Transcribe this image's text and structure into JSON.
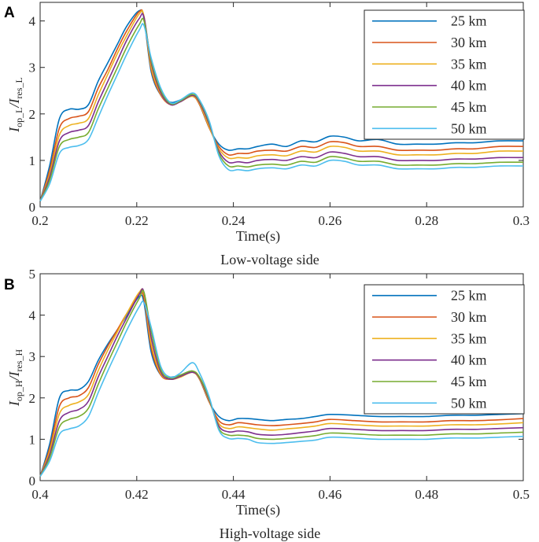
{
  "chart_data": [
    {
      "panel": "A",
      "type": "line",
      "caption": "Low-voltage side",
      "xlabel": "Time(s)",
      "ylabel_main": "I",
      "ylabel_sub1": "op_L",
      "ylabel_mid": "/I",
      "ylabel_sub2": "res_L",
      "xlim": [
        0.2,
        0.3
      ],
      "ylim": [
        0,
        4.4
      ],
      "xticks": [
        "0.2",
        "0.22",
        "0.24",
        "0.26",
        "0.28",
        "0.3"
      ],
      "xtick_values": [
        0.2,
        0.22,
        0.24,
        0.26,
        0.28,
        0.3
      ],
      "yticks": [
        "0",
        "1",
        "2",
        "3",
        "4"
      ],
      "ytick_values": [
        0,
        1,
        2,
        3,
        4
      ],
      "legend_position": "top-right",
      "x": [
        0.2,
        0.202,
        0.204,
        0.206,
        0.208,
        0.21,
        0.212,
        0.214,
        0.216,
        0.218,
        0.2205,
        0.2215,
        0.223,
        0.225,
        0.227,
        0.229,
        0.2315,
        0.233,
        0.235,
        0.237,
        0.239,
        0.241,
        0.243,
        0.245,
        0.248,
        0.251,
        0.254,
        0.257,
        0.26,
        0.263,
        0.266,
        0.27,
        0.274,
        0.278,
        0.282,
        0.286,
        0.29,
        0.295,
        0.3
      ],
      "series": [
        {
          "name": "25 km",
          "color": "#0072bd",
          "values": [
            0.12,
            0.9,
            1.9,
            2.1,
            2.1,
            2.2,
            2.7,
            3.1,
            3.5,
            3.9,
            4.22,
            4.05,
            2.9,
            2.4,
            2.25,
            2.3,
            2.42,
            2.2,
            1.7,
            1.35,
            1.22,
            1.25,
            1.25,
            1.3,
            1.35,
            1.3,
            1.42,
            1.4,
            1.52,
            1.5,
            1.42,
            1.45,
            1.35,
            1.35,
            1.35,
            1.38,
            1.38,
            1.42,
            1.42
          ]
        },
        {
          "name": "30 km",
          "color": "#d95319",
          "values": [
            0.12,
            0.8,
            1.7,
            1.9,
            1.95,
            2.05,
            2.55,
            2.95,
            3.4,
            3.8,
            4.2,
            4.08,
            2.95,
            2.4,
            2.2,
            2.28,
            2.38,
            2.2,
            1.7,
            1.3,
            1.12,
            1.15,
            1.15,
            1.2,
            1.22,
            1.2,
            1.3,
            1.28,
            1.4,
            1.38,
            1.3,
            1.3,
            1.22,
            1.22,
            1.22,
            1.25,
            1.25,
            1.3,
            1.3
          ]
        },
        {
          "name": "35 km",
          "color": "#edb120",
          "values": [
            0.12,
            0.72,
            1.55,
            1.75,
            1.8,
            1.9,
            2.4,
            2.85,
            3.3,
            3.7,
            4.15,
            4.1,
            3.0,
            2.42,
            2.2,
            2.26,
            2.38,
            2.22,
            1.72,
            1.25,
            1.05,
            1.06,
            1.05,
            1.1,
            1.12,
            1.1,
            1.2,
            1.18,
            1.3,
            1.28,
            1.2,
            1.2,
            1.12,
            1.12,
            1.12,
            1.15,
            1.15,
            1.2,
            1.2
          ]
        },
        {
          "name": "40 km",
          "color": "#7e2f8e",
          "values": [
            0.12,
            0.65,
            1.42,
            1.6,
            1.65,
            1.75,
            2.25,
            2.7,
            3.15,
            3.6,
            4.05,
            4.08,
            3.1,
            2.45,
            2.2,
            2.26,
            2.4,
            2.25,
            1.78,
            1.2,
            0.96,
            0.97,
            0.95,
            1.0,
            1.02,
            1.0,
            1.08,
            1.06,
            1.18,
            1.15,
            1.08,
            1.08,
            1.0,
            1.0,
            1.0,
            1.03,
            1.03,
            1.06,
            1.06
          ]
        },
        {
          "name": "45 km",
          "color": "#77ac30",
          "values": [
            0.12,
            0.58,
            1.3,
            1.45,
            1.5,
            1.6,
            2.1,
            2.55,
            3.0,
            3.45,
            3.92,
            4.0,
            3.15,
            2.5,
            2.22,
            2.28,
            2.42,
            2.28,
            1.82,
            1.15,
            0.88,
            0.88,
            0.86,
            0.9,
            0.92,
            0.9,
            0.98,
            0.96,
            1.08,
            1.05,
            0.98,
            0.98,
            0.9,
            0.9,
            0.9,
            0.93,
            0.93,
            0.96,
            0.96
          ]
        },
        {
          "name": "50 km",
          "color": "#4dbeee",
          "values": [
            0.12,
            0.5,
            1.15,
            1.28,
            1.32,
            1.45,
            1.92,
            2.4,
            2.85,
            3.3,
            3.8,
            3.9,
            3.2,
            2.55,
            2.24,
            2.3,
            2.45,
            2.3,
            1.85,
            1.1,
            0.8,
            0.8,
            0.78,
            0.82,
            0.84,
            0.82,
            0.9,
            0.88,
            1.0,
            0.98,
            0.9,
            0.9,
            0.82,
            0.82,
            0.82,
            0.85,
            0.85,
            0.88,
            0.88
          ]
        }
      ]
    },
    {
      "panel": "B",
      "type": "line",
      "caption": "High-voltage side",
      "xlabel": "Time(s)",
      "ylabel_main": "I",
      "ylabel_sub1": "op_H",
      "ylabel_mid": "/I",
      "ylabel_sub2": "res_H",
      "xlim": [
        0.4,
        0.5
      ],
      "ylim": [
        0,
        5
      ],
      "xticks": [
        "0.4",
        "0.42",
        "0.44",
        "0.46",
        "0.48",
        "0.5"
      ],
      "xtick_values": [
        0.4,
        0.42,
        0.44,
        0.46,
        0.48,
        0.5
      ],
      "yticks": [
        "0",
        "1",
        "2",
        "3",
        "4",
        "5"
      ],
      "ytick_values": [
        0,
        1,
        2,
        3,
        4,
        5
      ],
      "legend_position": "top-right",
      "x": [
        0.4,
        0.402,
        0.404,
        0.406,
        0.408,
        0.41,
        0.412,
        0.414,
        0.416,
        0.418,
        0.4205,
        0.4215,
        0.423,
        0.425,
        0.427,
        0.429,
        0.4315,
        0.433,
        0.435,
        0.437,
        0.439,
        0.441,
        0.443,
        0.445,
        0.448,
        0.451,
        0.454,
        0.457,
        0.46,
        0.465,
        0.47,
        0.475,
        0.48,
        0.485,
        0.49,
        0.495,
        0.5
      ],
      "series": [
        {
          "name": "25 km",
          "color": "#0072bd",
          "values": [
            0.1,
            0.9,
            2.0,
            2.18,
            2.2,
            2.4,
            2.9,
            3.3,
            3.65,
            4.0,
            4.45,
            4.3,
            3.1,
            2.55,
            2.5,
            2.55,
            2.65,
            2.45,
            1.9,
            1.55,
            1.45,
            1.5,
            1.5,
            1.48,
            1.45,
            1.48,
            1.5,
            1.55,
            1.6,
            1.58,
            1.55,
            1.55,
            1.55,
            1.58,
            1.58,
            1.6,
            1.62
          ]
        },
        {
          "name": "30 km",
          "color": "#d95319",
          "values": [
            0.1,
            0.8,
            1.8,
            2.0,
            2.05,
            2.25,
            2.8,
            3.25,
            3.65,
            4.05,
            4.5,
            4.4,
            3.2,
            2.55,
            2.45,
            2.52,
            2.62,
            2.45,
            1.9,
            1.45,
            1.35,
            1.4,
            1.38,
            1.35,
            1.33,
            1.35,
            1.38,
            1.42,
            1.48,
            1.45,
            1.42,
            1.42,
            1.42,
            1.45,
            1.45,
            1.47,
            1.5
          ]
        },
        {
          "name": "35 km",
          "color": "#edb120",
          "values": [
            0.1,
            0.72,
            1.62,
            1.82,
            1.9,
            2.08,
            2.65,
            3.15,
            3.6,
            4.05,
            4.55,
            4.5,
            3.3,
            2.58,
            2.45,
            2.5,
            2.62,
            2.46,
            1.92,
            1.38,
            1.26,
            1.3,
            1.28,
            1.25,
            1.22,
            1.25,
            1.28,
            1.32,
            1.38,
            1.35,
            1.32,
            1.32,
            1.32,
            1.35,
            1.35,
            1.37,
            1.4
          ]
        },
        {
          "name": "40 km",
          "color": "#7e2f8e",
          "values": [
            0.1,
            0.64,
            1.45,
            1.65,
            1.72,
            1.92,
            2.5,
            3.0,
            3.5,
            3.95,
            4.5,
            4.55,
            3.45,
            2.62,
            2.45,
            2.52,
            2.62,
            2.48,
            1.95,
            1.32,
            1.18,
            1.2,
            1.18,
            1.12,
            1.1,
            1.12,
            1.16,
            1.2,
            1.26,
            1.24,
            1.21,
            1.21,
            1.21,
            1.24,
            1.24,
            1.26,
            1.28
          ]
        },
        {
          "name": "45 km",
          "color": "#77ac30",
          "values": [
            0.1,
            0.56,
            1.3,
            1.48,
            1.55,
            1.75,
            2.32,
            2.85,
            3.35,
            3.85,
            4.4,
            4.55,
            3.6,
            2.68,
            2.48,
            2.55,
            2.65,
            2.5,
            1.98,
            1.26,
            1.1,
            1.1,
            1.08,
            1.02,
            1.0,
            1.02,
            1.05,
            1.09,
            1.15,
            1.13,
            1.1,
            1.1,
            1.1,
            1.13,
            1.13,
            1.15,
            1.17
          ]
        },
        {
          "name": "50 km",
          "color": "#4dbeee",
          "values": [
            0.1,
            0.48,
            1.12,
            1.25,
            1.32,
            1.55,
            2.12,
            2.65,
            3.15,
            3.65,
            4.2,
            4.3,
            3.7,
            2.75,
            2.5,
            2.6,
            2.85,
            2.6,
            2.02,
            1.22,
            1.02,
            1.02,
            1.0,
            0.92,
            0.9,
            0.92,
            0.95,
            0.98,
            1.05,
            1.03,
            1.0,
            1.0,
            1.0,
            1.03,
            1.03,
            1.05,
            1.07
          ]
        }
      ]
    }
  ]
}
